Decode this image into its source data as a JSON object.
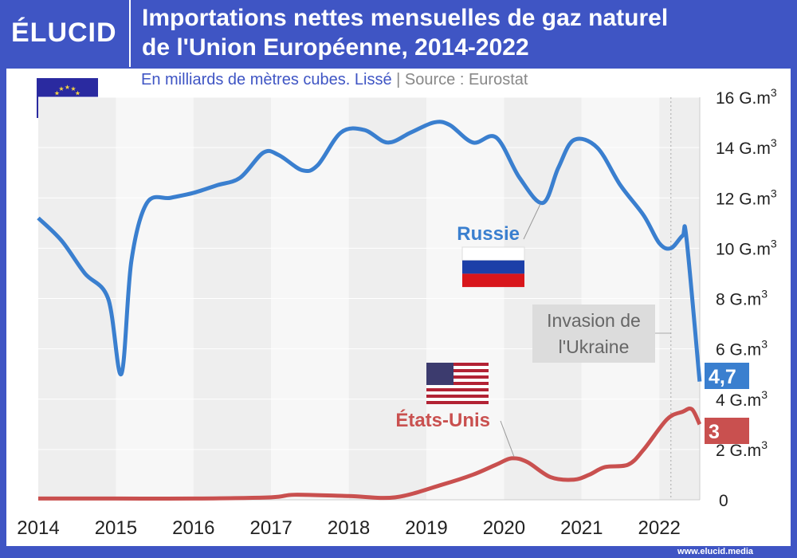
{
  "logo": "ÉLUCID",
  "title_line1": "Importations nettes mensuelles de gaz naturel",
  "title_line2": "de l'Union Européenne, 2014-2022",
  "subtitle": "En milliards de mètres cubes. Lissé",
  "separator": "|",
  "source": "Source : Eurostat",
  "footer": "www.elucid.media",
  "chart_data": {
    "type": "line",
    "title": "Importations nettes mensuelles de gaz naturel de l'Union Européenne, 2014-2022",
    "ylabel": "G.m3",
    "ylim": [
      0,
      16
    ],
    "xlim": [
      2014,
      2022.52
    ],
    "y_ticks": [
      0,
      2,
      4,
      6,
      8,
      10,
      12,
      14,
      16
    ],
    "y_tick_labels": [
      "0",
      "2 G.m",
      "4 G.m",
      "6 G.m",
      "8 G.m",
      "10 G.m",
      "12 G.m",
      "14 G.m",
      "16 G.m"
    ],
    "y_tick_sup": "3",
    "x_ticks": [
      "2014",
      "2015",
      "2016",
      "2017",
      "2018",
      "2019",
      "2020",
      "2021",
      "2022"
    ],
    "annotation": {
      "line1": "Invasion de",
      "line2": "l'Ukraine",
      "x": 2022.15
    },
    "series": [
      {
        "name": "Russie",
        "color": "#3a7fcf",
        "end_label": "4,7",
        "x": [
          2014,
          2014.3,
          2014.6,
          2014.9,
          2015.07,
          2015.2,
          2015.4,
          2015.7,
          2016,
          2016.3,
          2016.6,
          2016.9,
          2017.1,
          2017.4,
          2017.6,
          2017.9,
          2018.2,
          2018.5,
          2018.8,
          2019.1,
          2019.3,
          2019.6,
          2019.9,
          2020.2,
          2020.5,
          2020.7,
          2020.9,
          2021.2,
          2021.5,
          2021.8,
          2022.0,
          2022.15,
          2022.3,
          2022.35,
          2022.52
        ],
        "y": [
          11.2,
          10.3,
          9,
          8,
          5.0,
          9.5,
          11.8,
          12,
          12.2,
          12.5,
          12.8,
          13.8,
          13.7,
          13.1,
          13.3,
          14.6,
          14.7,
          14.2,
          14.6,
          15.0,
          14.9,
          14.2,
          14.4,
          12.8,
          11.8,
          13.2,
          14.3,
          14.0,
          12.5,
          11.3,
          10.2,
          10.0,
          10.5,
          10.4,
          4.7
        ]
      },
      {
        "name": "États-Unis",
        "color": "#c9504f",
        "end_label": "3",
        "x": [
          2014,
          2015,
          2016,
          2017,
          2017.3,
          2018,
          2018.6,
          2019.2,
          2019.6,
          2019.9,
          2020.1,
          2020.3,
          2020.6,
          2020.9,
          2021.1,
          2021.3,
          2021.6,
          2021.8,
          2022.1,
          2022.3,
          2022.42,
          2022.52
        ],
        "y": [
          0.05,
          0.05,
          0.05,
          0.1,
          0.2,
          0.15,
          0.1,
          0.6,
          1.0,
          1.4,
          1.65,
          1.5,
          0.9,
          0.8,
          1.0,
          1.3,
          1.4,
          2.0,
          3.2,
          3.5,
          3.6,
          3.0
        ]
      }
    ]
  }
}
